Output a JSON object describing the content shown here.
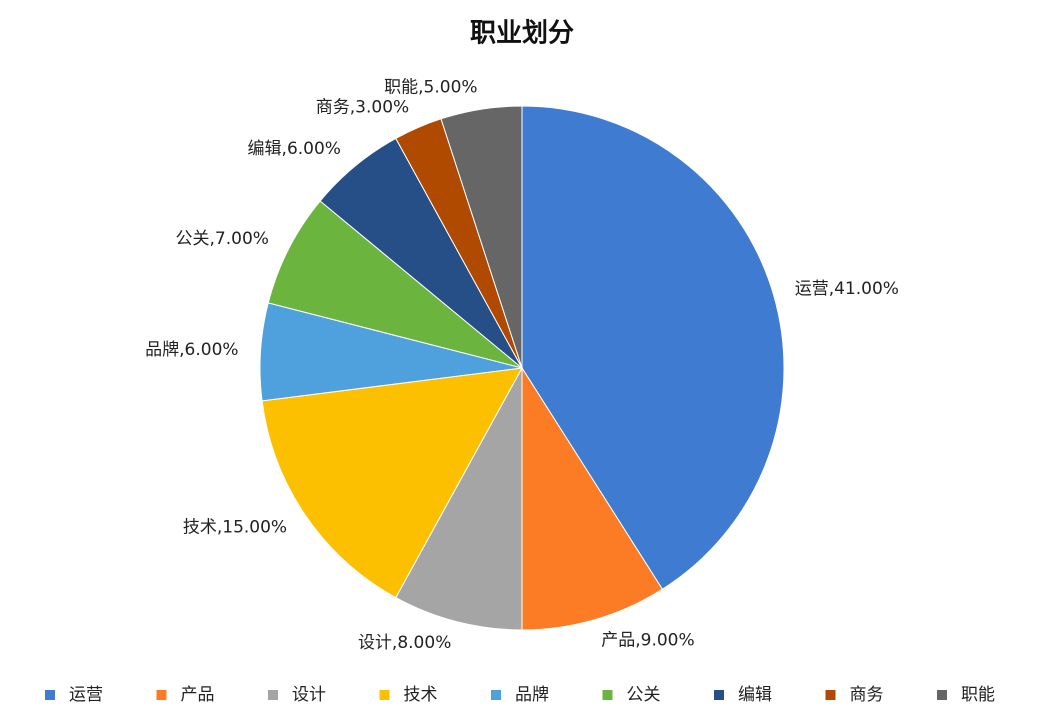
{
  "chart_data": {
    "type": "pie",
    "title": "职业划分",
    "categories": [
      "运营",
      "产品",
      "设计",
      "技术",
      "品牌",
      "公关",
      "编辑",
      "商务",
      "职能"
    ],
    "values": [
      41,
      9,
      8,
      15,
      6,
      7,
      6,
      3,
      5
    ],
    "value_labels": [
      "运营,41.00%",
      "产品,9.00%",
      "设计,8.00%",
      "技术,15.00%",
      "品牌,6.00%",
      "公关,7.00%",
      "编辑,6.00%",
      "商务,3.00%",
      "职能,5.00%"
    ],
    "colors": [
      "#3f7bd0",
      "#fb7c24",
      "#a5a5a5",
      "#fcc000",
      "#4ea1dc",
      "#6bb53f",
      "#264f88",
      "#b04a00",
      "#666666"
    ],
    "legend": "bottom"
  }
}
